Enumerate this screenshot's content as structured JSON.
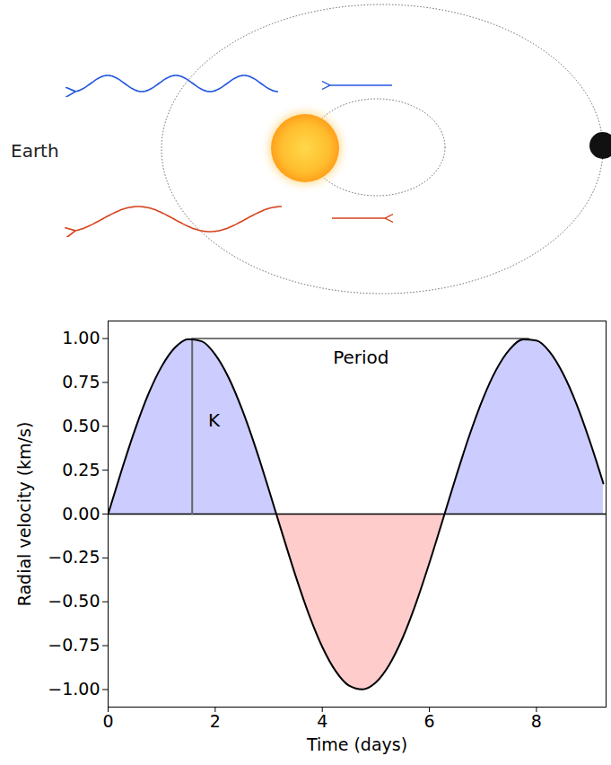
{
  "chart_data": {
    "type": "line",
    "xlabel": "Time (days)",
    "ylabel": "Radial velocity (km/s)",
    "x": [
      0,
      0.25,
      0.5,
      0.75,
      1,
      1.25,
      1.5,
      1.75,
      2,
      2.25,
      2.5,
      2.75,
      3,
      3.25,
      3.5,
      3.75,
      4,
      4.25,
      4.5,
      4.75,
      5,
      5.25,
      5.5,
      5.75,
      6,
      6.25,
      6.5,
      6.75,
      7,
      7.25,
      7.5,
      7.75,
      8,
      8.25,
      8.5,
      8.75,
      9,
      9.25
    ],
    "series": [
      {
        "color": "#000000",
        "values": [
          0,
          0.247,
          0.479,
          0.682,
          0.841,
          0.949,
          0.997,
          0.984,
          0.909,
          0.778,
          0.598,
          0.382,
          0.141,
          -0.108,
          -0.351,
          -0.572,
          -0.757,
          -0.895,
          -0.978,
          -0.999,
          -0.959,
          -0.859,
          -0.706,
          -0.508,
          -0.279,
          -0.033,
          0.215,
          0.45,
          0.657,
          0.823,
          0.938,
          0.995,
          0.989,
          0.923,
          0.798,
          0.625,
          0.412,
          0.174
        ]
      }
    ],
    "colors": [
      "#ccccff",
      "#ffcccc"
    ],
    "xlim": [
      0,
      9.3
    ],
    "ylim": [
      -1.1,
      1.1
    ],
    "xticks": [
      0,
      2,
      4,
      6,
      8
    ],
    "yticks": [
      {
        "value": -1,
        "label": "−1.00"
      },
      {
        "value": -0.75,
        "label": "−0.75"
      },
      {
        "value": -0.5,
        "label": "−0.50"
      },
      {
        "value": -0.25,
        "label": "−0.25"
      },
      {
        "value": 0,
        "label": "0.00"
      },
      {
        "value": 0.25,
        "label": "0.25"
      },
      {
        "value": 0.5,
        "label": "0.50"
      },
      {
        "value": 0.75,
        "label": "0.75"
      },
      {
        "value": 1,
        "label": "1.00"
      }
    ],
    "grid": false,
    "period_line": {
      "x": [
        1.57,
        7.85
      ],
      "y": 1
    },
    "k_line": {
      "x": 1.57,
      "y": [
        0,
        1
      ]
    },
    "annotations": [
      {
        "text": "Period",
        "x": 4.2,
        "y": 0.89
      },
      {
        "text": "K",
        "x": 1.87,
        "y": 0.53
      }
    ]
  },
  "diagram": {
    "label": "Earth"
  }
}
